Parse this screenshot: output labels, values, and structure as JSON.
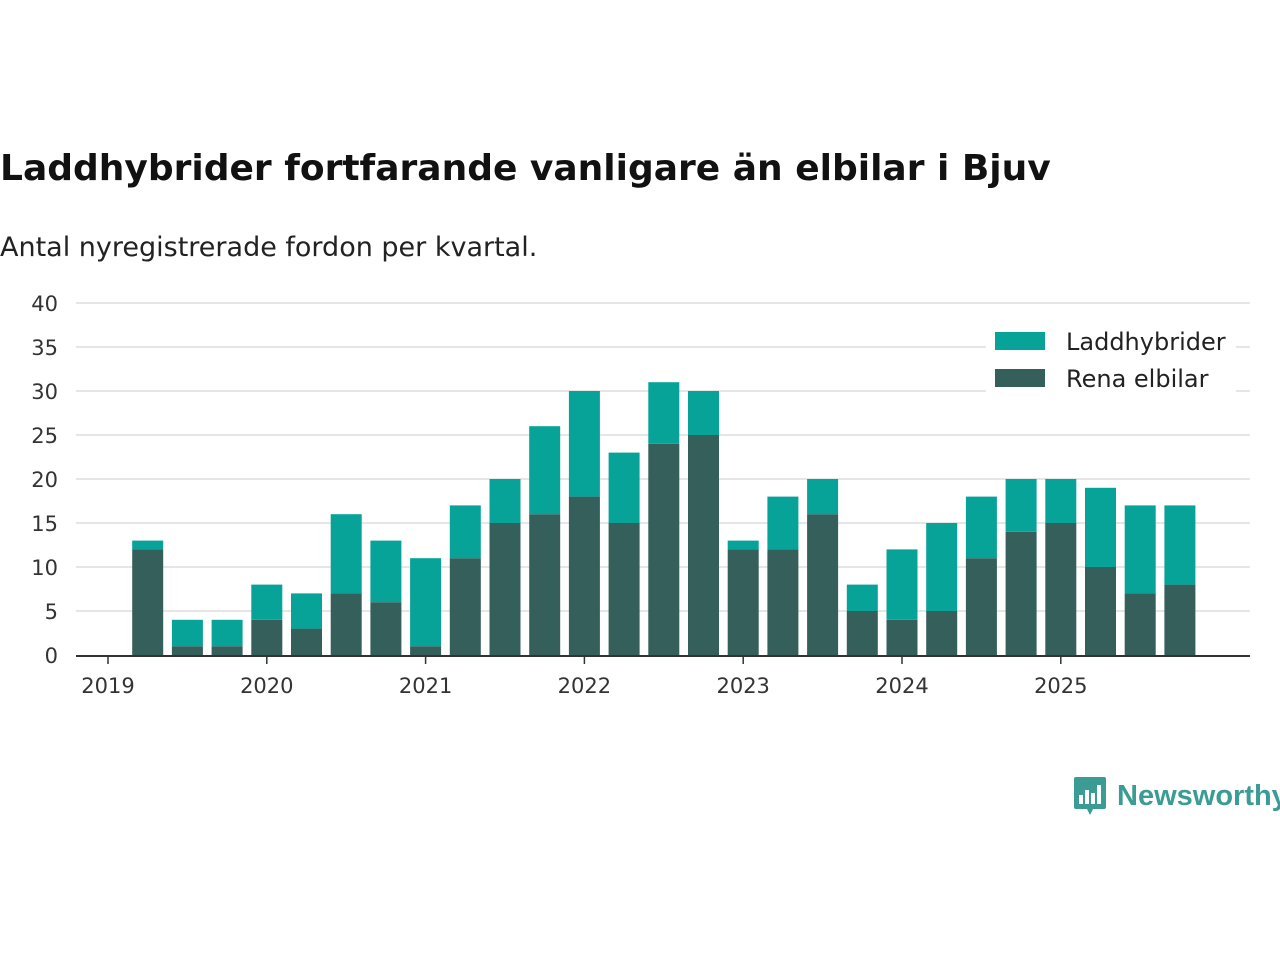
{
  "title": "Laddhybrider fortfarande vanligare än elbilar i Bjuv",
  "subtitle": "Antal nyregistrerade fordon per kvartal.",
  "brand": "Newsworthy",
  "colors": {
    "laddhybrider": "#07a298",
    "rena_elbilar": "#355f5b",
    "grid": "#dddddd",
    "brand": "#3a9c94"
  },
  "chart_data": {
    "type": "bar",
    "stacked": true,
    "title": "Laddhybrider fortfarande vanligare än elbilar i Bjuv",
    "subtitle": "Antal nyregistrerade fordon per kvartal.",
    "xlabel": "",
    "ylabel": "",
    "ylim": [
      0,
      40
    ],
    "yticks": [
      0,
      5,
      10,
      15,
      20,
      25,
      30,
      35,
      40
    ],
    "xtick_labels": [
      "2019",
      "2020",
      "2021",
      "2022",
      "2023",
      "2024",
      "2025"
    ],
    "legend_position": "top-right",
    "categories": [
      "2019 Q1",
      "2019 Q2",
      "2019 Q3",
      "2019 Q4",
      "2020 Q1",
      "2020 Q2",
      "2020 Q3",
      "2020 Q4",
      "2021 Q1",
      "2021 Q2",
      "2021 Q3",
      "2021 Q4",
      "2022 Q1",
      "2022 Q2",
      "2022 Q3",
      "2022 Q4",
      "2023 Q1",
      "2023 Q2",
      "2023 Q3",
      "2023 Q4",
      "2024 Q1",
      "2024 Q2",
      "2024 Q3",
      "2024 Q4",
      "2025 Q1",
      "2025 Q2",
      "2025 Q3",
      "2025 Q4"
    ],
    "series": [
      {
        "name": "Rena elbilar",
        "color": "#355f5b",
        "values": [
          0,
          12,
          1,
          1,
          4,
          3,
          7,
          6,
          1,
          11,
          15,
          16,
          18,
          15,
          24,
          25,
          12,
          12,
          16,
          5,
          4,
          5,
          11,
          14,
          15,
          10,
          7,
          8
        ]
      },
      {
        "name": "Laddhybrider",
        "color": "#07a298",
        "values": [
          0,
          1,
          3,
          3,
          4,
          4,
          9,
          7,
          10,
          6,
          5,
          10,
          12,
          8,
          7,
          5,
          1,
          6,
          4,
          3,
          8,
          10,
          7,
          6,
          5,
          9,
          10,
          9
        ]
      }
    ]
  }
}
